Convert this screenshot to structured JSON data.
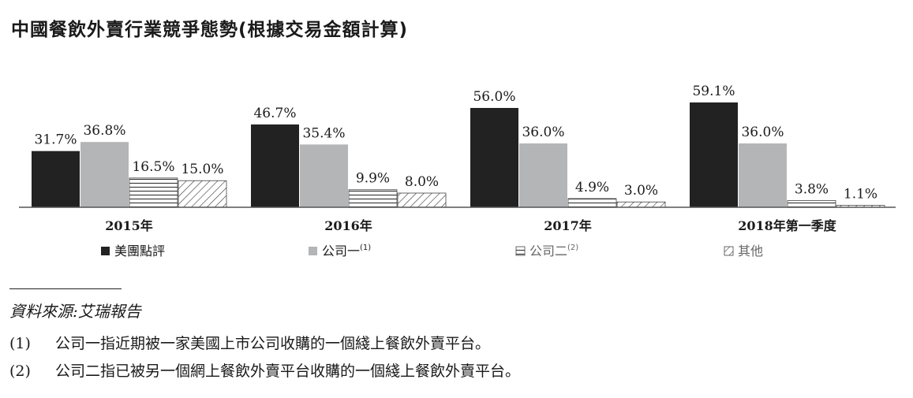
{
  "title": "中國餐飲外賣行業競爭態勢(根據交易金額計算)",
  "chart_data": {
    "type": "bar",
    "categories": [
      "2015年",
      "2016年",
      "2017年",
      "2018年第一季度"
    ],
    "series": [
      {
        "name": "美團點評",
        "values": [
          31.7,
          46.7,
          56.0,
          59.1
        ],
        "labels": [
          "31.7%",
          "46.7%",
          "56.0%",
          "59.1%"
        ],
        "fill": "#222222",
        "pattern": "solid"
      },
      {
        "name": "公司一",
        "superscript": "(1)",
        "values": [
          36.8,
          35.4,
          36.0,
          36.0
        ],
        "labels": [
          "36.8%",
          "35.4%",
          "36.0%",
          "36.0%"
        ],
        "fill": "#b4b5b7",
        "pattern": "solid"
      },
      {
        "name": "公司二",
        "superscript": "(2)",
        "values": [
          16.5,
          9.9,
          4.9,
          3.8
        ],
        "labels": [
          "16.5%",
          "9.9%",
          "4.9%",
          "3.8%"
        ],
        "fill": "#ffffff",
        "pattern": "horizontal-lines"
      },
      {
        "name": "其他",
        "values": [
          15.0,
          8.0,
          3.0,
          1.1
        ],
        "labels": [
          "15.0%",
          "8.0%",
          "3.0%",
          "1.1%"
        ],
        "fill": "#ffffff",
        "pattern": "diagonal-lines"
      }
    ],
    "ylim": [
      0,
      60
    ],
    "grid": false,
    "legend_position": "bottom"
  },
  "footnotes": {
    "source": "資料來源:艾瑞報告",
    "notes": [
      {
        "num": "(1)",
        "text": "公司一指近期被一家美國上市公司收購的一個綫上餐飲外賣平台。"
      },
      {
        "num": "(2)",
        "text": "公司二指已被另一個網上餐飲外賣平台收購的一個綫上餐飲外賣平台。"
      }
    ]
  }
}
